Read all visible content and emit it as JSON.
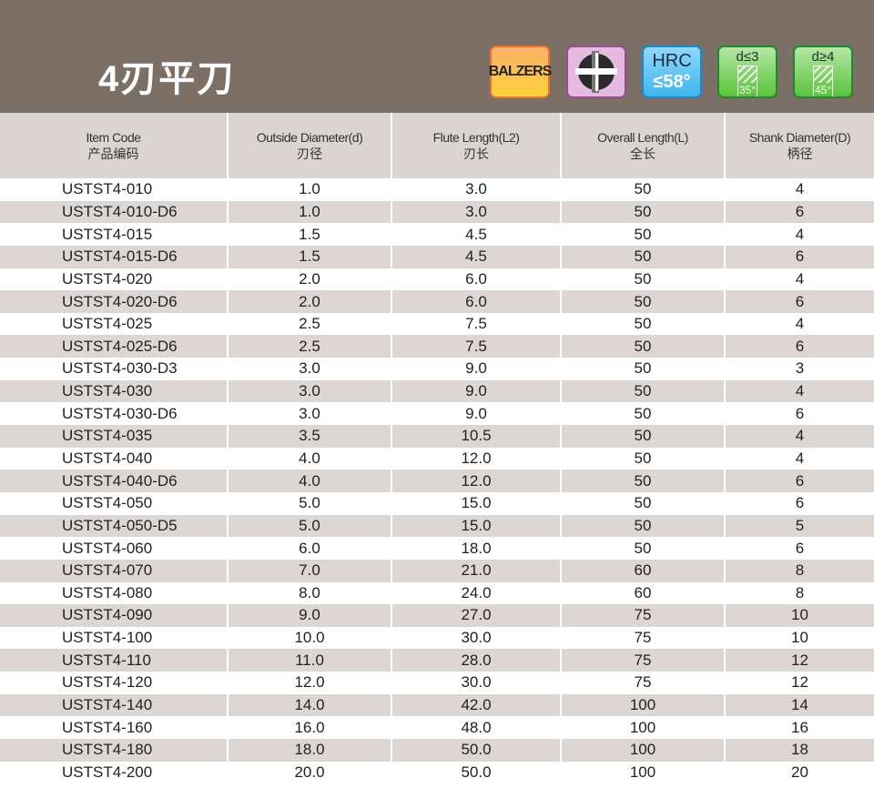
{
  "title": "4刃平刀",
  "badges": {
    "coating": "BALZERS",
    "flutes_icon": "4-flute-cross-section-icon",
    "hrc_label": "HRC",
    "hrc_value": "≤58°",
    "helix1_cond": "d≤3",
    "helix1_angle": "35°",
    "helix2_cond": "d≥4",
    "helix2_angle": "45°"
  },
  "headers": [
    {
      "en": "Item Code",
      "zh": "产品编码"
    },
    {
      "en": "Outside Diameter(d)",
      "zh": "刃径"
    },
    {
      "en": "Flute Length(L2)",
      "zh": "刃长"
    },
    {
      "en": "Overall Length(L)",
      "zh": "全长"
    },
    {
      "en": "Shank Diameter(D)",
      "zh": "柄径"
    }
  ],
  "rows": [
    [
      "USTST4-010",
      "1.0",
      "3.0",
      "50",
      "4"
    ],
    [
      "USTST4-010-D6",
      "1.0",
      "3.0",
      "50",
      "6"
    ],
    [
      "USTST4-015",
      "1.5",
      "4.5",
      "50",
      "4"
    ],
    [
      "USTST4-015-D6",
      "1.5",
      "4.5",
      "50",
      "6"
    ],
    [
      "USTST4-020",
      "2.0",
      "6.0",
      "50",
      "4"
    ],
    [
      "USTST4-020-D6",
      "2.0",
      "6.0",
      "50",
      "6"
    ],
    [
      "USTST4-025",
      "2.5",
      "7.5",
      "50",
      "4"
    ],
    [
      "USTST4-025-D6",
      "2.5",
      "7.5",
      "50",
      "6"
    ],
    [
      "USTST4-030-D3",
      "3.0",
      "9.0",
      "50",
      "3"
    ],
    [
      "USTST4-030",
      "3.0",
      "9.0",
      "50",
      "4"
    ],
    [
      "USTST4-030-D6",
      "3.0",
      "9.0",
      "50",
      "6"
    ],
    [
      "USTST4-035",
      "3.5",
      "10.5",
      "50",
      "4"
    ],
    [
      "USTST4-040",
      "4.0",
      "12.0",
      "50",
      "4"
    ],
    [
      "USTST4-040-D6",
      "4.0",
      "12.0",
      "50",
      "6"
    ],
    [
      "USTST4-050",
      "5.0",
      "15.0",
      "50",
      "6"
    ],
    [
      "USTST4-050-D5",
      "5.0",
      "15.0",
      "50",
      "5"
    ],
    [
      "USTST4-060",
      "6.0",
      "18.0",
      "50",
      "6"
    ],
    [
      "USTST4-070",
      "7.0",
      "21.0",
      "60",
      "8"
    ],
    [
      "USTST4-080",
      "8.0",
      "24.0",
      "60",
      "8"
    ],
    [
      "USTST4-090",
      "9.0",
      "27.0",
      "75",
      "10"
    ],
    [
      "USTST4-100",
      "10.0",
      "30.0",
      "75",
      "10"
    ],
    [
      "USTST4-110",
      "11.0",
      "28.0",
      "75",
      "12"
    ],
    [
      "USTST4-120",
      "12.0",
      "30.0",
      "75",
      "12"
    ],
    [
      "USTST4-140",
      "14.0",
      "42.0",
      "100",
      "14"
    ],
    [
      "USTST4-160",
      "16.0",
      "48.0",
      "100",
      "16"
    ],
    [
      "USTST4-180",
      "18.0",
      "50.0",
      "100",
      "18"
    ],
    [
      "USTST4-200",
      "20.0",
      "50.0",
      "100",
      "20"
    ]
  ]
}
